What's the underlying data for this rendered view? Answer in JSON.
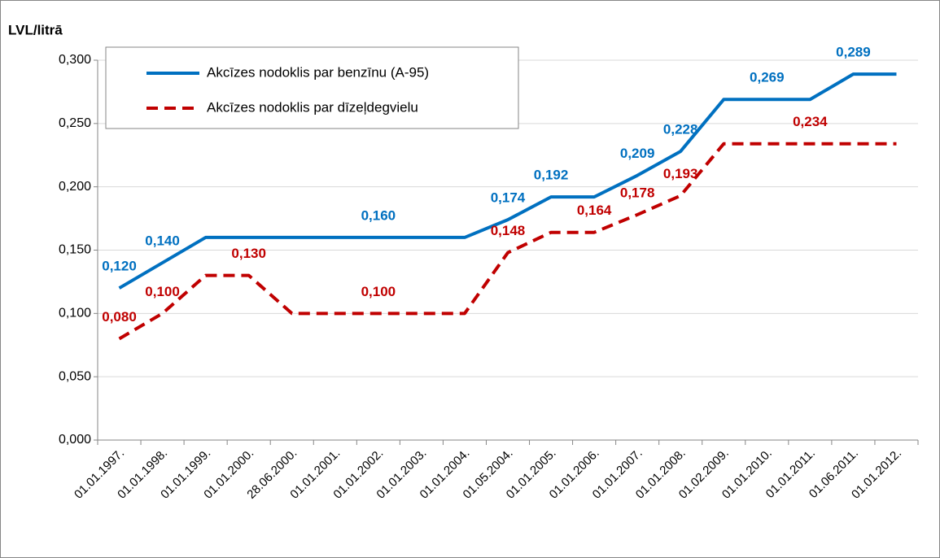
{
  "chart_data": {
    "type": "line",
    "y_axis_label": "LVL/litrā",
    "categories": [
      "01.01.1997.",
      "01.01.1998.",
      "01.01.1999.",
      "01.01.2000.",
      "28.06.2000.",
      "01.01.2001.",
      "01.01.2002.",
      "01.01.2003.",
      "01.01.2004.",
      "01.05.2004.",
      "01.01.2005.",
      "01.01.2006.",
      "01.01.2007.",
      "01.01.2008.",
      "01.02.2009.",
      "01.01.2010.",
      "01.01.2011.",
      "01.06.2011.",
      "01.01.2012."
    ],
    "series": [
      {
        "name": "Akcīzes nodoklis par benzīnu (A-95)",
        "color": "#0070c0",
        "line_style": "solid",
        "values": [
          0.12,
          0.14,
          0.16,
          0.16,
          0.16,
          0.16,
          0.16,
          0.16,
          0.16,
          0.174,
          0.192,
          0.192,
          0.209,
          0.228,
          0.269,
          0.269,
          0.269,
          0.289,
          0.289
        ],
        "value_labels": [
          "0,120",
          "0,140",
          null,
          null,
          null,
          null,
          "0,160",
          null,
          null,
          "0,174",
          "0,192",
          null,
          "0,209",
          "0,228",
          null,
          "0,269",
          null,
          "0,289",
          null
        ]
      },
      {
        "name": "Akcīzes nodoklis par dīzeļdegvielu",
        "color": "#c00000",
        "line_style": "dashed",
        "values": [
          0.08,
          0.1,
          0.13,
          0.13,
          0.1,
          0.1,
          0.1,
          0.1,
          0.1,
          0.148,
          0.164,
          0.164,
          0.178,
          0.193,
          0.234,
          0.234,
          0.234,
          0.234,
          0.234
        ],
        "value_labels": [
          "0,080",
          "0,100",
          null,
          "0,130",
          null,
          null,
          "0,100",
          null,
          null,
          "0,148",
          null,
          "0,164",
          "0,178",
          "0,193",
          null,
          null,
          "0,234",
          null,
          null
        ]
      }
    ],
    "ylim": [
      0,
      0.3
    ],
    "yticks": [
      {
        "value": 0,
        "label": "0,000"
      },
      {
        "value": 0.05,
        "label": "0,050"
      },
      {
        "value": 0.1,
        "label": "0,100"
      },
      {
        "value": 0.15,
        "label": "0,150"
      },
      {
        "value": 0.2,
        "label": "0,200"
      },
      {
        "value": 0.25,
        "label": "0,250"
      },
      {
        "value": 0.3,
        "label": "0,300"
      }
    ],
    "grid": true,
    "legend": "top-left"
  }
}
